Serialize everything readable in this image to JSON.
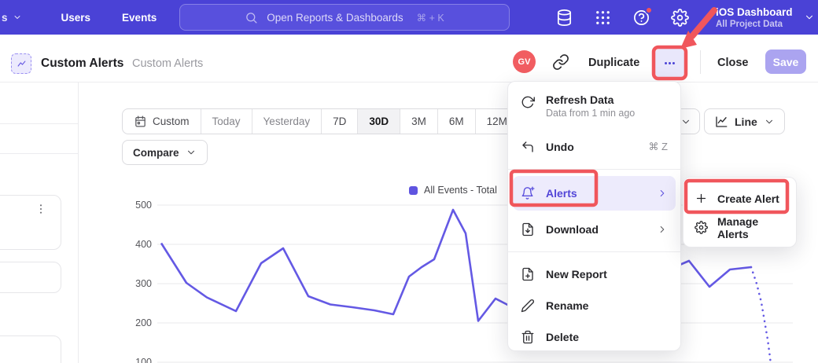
{
  "topbar": {
    "nav_partial": "s",
    "nav_items": [
      "Users",
      "Events"
    ],
    "search": {
      "placeholder": "Open Reports & Dashboards",
      "shortcut": "⌘ + K"
    },
    "icons": [
      "data-icon",
      "apps-grid-icon",
      "help-icon",
      "settings-icon"
    ],
    "project": {
      "name": "iOS Dashboard",
      "scope": "All Project Data"
    }
  },
  "header": {
    "title": "Custom Alerts",
    "breadcrumb": "Custom Alerts",
    "avatar_initials": "GV",
    "duplicate_label": "Duplicate",
    "close_label": "Close",
    "save_label": "Save"
  },
  "toolbar": {
    "ranges": [
      {
        "label": "Custom",
        "icon": "calendar"
      },
      {
        "label": "Today",
        "muted": true
      },
      {
        "label": "Yesterday",
        "muted": true
      },
      {
        "label": "7D"
      },
      {
        "label": "30D",
        "selected": true
      },
      {
        "label": "3M"
      },
      {
        "label": "6M"
      },
      {
        "label": "12M"
      }
    ],
    "chart_type_label": "Line",
    "compare_label": "Compare"
  },
  "menu": {
    "items": [
      {
        "label": "Refresh Data",
        "sub": "Data from 1 min ago",
        "icon": "refresh"
      },
      {
        "label": "Undo",
        "shortcut": "⌘ Z",
        "icon": "undo"
      },
      {
        "divider": true
      },
      {
        "label": "Alerts",
        "icon": "bell-plus",
        "submenu": true,
        "highlighted": true
      },
      {
        "label": "Download",
        "icon": "file-download",
        "submenu": true
      },
      {
        "divider": true
      },
      {
        "label": "New Report",
        "icon": "file-plus"
      },
      {
        "label": "Rename",
        "icon": "pencil"
      },
      {
        "label": "Delete",
        "icon": "trash"
      }
    ]
  },
  "submenu": {
    "items": [
      {
        "label": "Create Alert",
        "icon": "plus"
      },
      {
        "label": "Manage Alerts",
        "icon": "gear"
      }
    ]
  },
  "chart_data": {
    "type": "line",
    "legend": "All Events - Total",
    "line_color": "#6459e4",
    "swatch_color": "#5f54e0",
    "grid_color": "#e9e9eb",
    "yticks": [
      500,
      400,
      300,
      200,
      100
    ],
    "ylim": [
      100,
      500
    ],
    "x_axis": "last 30 days (unlabeled)",
    "series": [
      {
        "name": "All Events - Total",
        "solid_points": [
          [
            205,
            403
          ],
          [
            237,
            302
          ],
          [
            263,
            265
          ],
          [
            300,
            230
          ],
          [
            332,
            352
          ],
          [
            360,
            390
          ],
          [
            392,
            268
          ],
          [
            420,
            247
          ],
          [
            448,
            240
          ],
          [
            476,
            232
          ],
          [
            500,
            222
          ],
          [
            520,
            318
          ],
          [
            536,
            342
          ],
          [
            552,
            362
          ],
          [
            576,
            488
          ],
          [
            592,
            428
          ],
          [
            608,
            205
          ],
          [
            630,
            262
          ],
          [
            656,
            235
          ],
          [
            680,
            205
          ],
          [
            700,
            178
          ],
          [
            716,
            172
          ],
          [
            732,
            190
          ],
          [
            756,
            212
          ],
          [
            784,
            248
          ],
          [
            812,
            292
          ],
          [
            840,
            325
          ],
          [
            862,
            346
          ],
          [
            876,
            358
          ],
          [
            902,
            292
          ],
          [
            928,
            336
          ],
          [
            955,
            342
          ]
        ],
        "dotted_points": [
          [
            955,
            342
          ],
          [
            962,
            300
          ],
          [
            968,
            252
          ],
          [
            972,
            205
          ],
          [
            976,
            158
          ],
          [
            979,
            112
          ],
          [
            981,
            75
          ]
        ]
      }
    ]
  },
  "annotation_color": "#f0565c"
}
